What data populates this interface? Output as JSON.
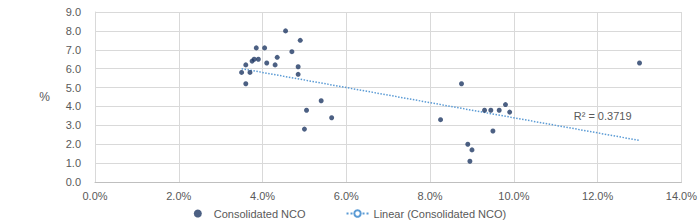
{
  "chart_data": {
    "type": "scatter",
    "ylabel": "%",
    "xlim": [
      0,
      14
    ],
    "xticks": [
      {
        "value": 0,
        "label": "0.0%"
      },
      {
        "value": 2,
        "label": "2.0%"
      },
      {
        "value": 4,
        "label": "4.0%"
      },
      {
        "value": 6,
        "label": "6.0%"
      },
      {
        "value": 8,
        "label": "8.0%"
      },
      {
        "value": 10,
        "label": "10.0%"
      },
      {
        "value": 12,
        "label": "12.0%"
      },
      {
        "value": 14,
        "label": "14.0%"
      }
    ],
    "ylim": [
      0,
      9
    ],
    "yticks": [
      {
        "value": 0,
        "label": "0.0"
      },
      {
        "value": 1,
        "label": "1.0"
      },
      {
        "value": 2,
        "label": "2.0"
      },
      {
        "value": 3,
        "label": "3.0"
      },
      {
        "value": 4,
        "label": "4.0"
      },
      {
        "value": 5,
        "label": "5.0"
      },
      {
        "value": 6,
        "label": "6.0"
      },
      {
        "value": 7,
        "label": "7.0"
      },
      {
        "value": 8,
        "label": "8.0"
      },
      {
        "value": 9,
        "label": "9.0"
      }
    ],
    "grid": true,
    "legend": "bottom",
    "annotations": [
      "R² = 0.3719"
    ],
    "series": [
      {
        "name": "Consolidated NCO",
        "type": "scatter",
        "marker": "circle",
        "color": "#1f3864",
        "x": [
          3.5,
          3.6,
          3.6,
          3.7,
          3.75,
          3.8,
          3.85,
          3.9,
          4.05,
          4.1,
          4.3,
          4.35,
          4.55,
          4.7,
          4.85,
          4.85,
          4.9,
          5.0,
          5.05,
          5.4,
          5.65,
          8.75,
          8.25,
          8.9,
          8.95,
          9.0,
          9.3,
          9.45,
          9.5,
          9.65,
          9.8,
          9.9,
          13.0
        ],
        "values": [
          5.8,
          6.2,
          5.2,
          5.8,
          6.4,
          6.5,
          7.1,
          6.5,
          7.1,
          6.3,
          6.2,
          6.6,
          8.0,
          6.9,
          6.1,
          5.7,
          7.5,
          2.8,
          3.8,
          4.3,
          3.4,
          5.2,
          3.3,
          2.0,
          1.1,
          1.7,
          3.8,
          3.8,
          2.7,
          3.8,
          4.1,
          3.7,
          6.3
        ]
      },
      {
        "name": "Linear (Consolidated NCO)",
        "type": "line",
        "line_style": "dotted",
        "color": "#5b9bd5",
        "x": [
          3.5,
          13.0
        ],
        "values": [
          6.0,
          2.2
        ]
      }
    ]
  }
}
